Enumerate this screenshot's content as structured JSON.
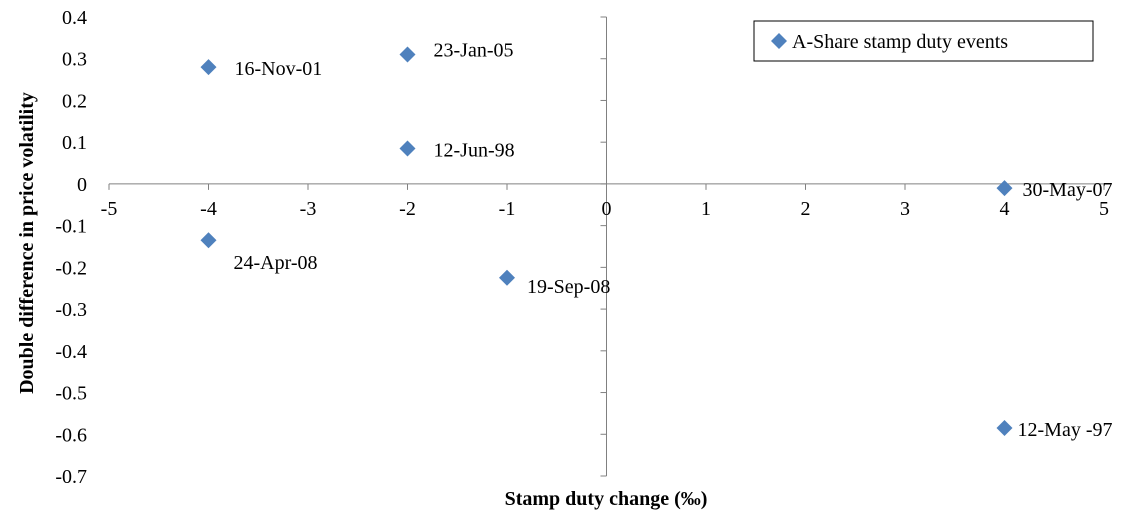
{
  "chart_data": {
    "type": "scatter",
    "xlabel": "Stamp duty change (‰)",
    "ylabel": "Double difference in price volatility",
    "xlim": [
      -5,
      5
    ],
    "ylim": [
      -0.7,
      0.4
    ],
    "x_ticks": [
      "-5",
      "-4",
      "-3",
      "-2",
      "-1",
      "0",
      "1",
      "2",
      "3",
      "4",
      "5"
    ],
    "y_ticks": [
      "0.4",
      "0.3",
      "0.2",
      "0.1",
      "0",
      "-0.1",
      "-0.2",
      "-0.3",
      "-0.4",
      "-0.5",
      "-0.6",
      "-0.7"
    ],
    "grid": false,
    "legend_position": "top-right",
    "marker_color": "#4F81BD",
    "series": [
      {
        "name": "A-Share stamp duty events",
        "points": [
          {
            "x": -4,
            "y": 0.28,
            "label": "16-Nov-01"
          },
          {
            "x": -2,
            "y": 0.31,
            "label": "23-Jan-05"
          },
          {
            "x": -2,
            "y": 0.085,
            "label": "12-Jun-98"
          },
          {
            "x": 4,
            "y": -0.01,
            "label": "30-May-07"
          },
          {
            "x": -4,
            "y": -0.135,
            "label": "24-Apr-08"
          },
          {
            "x": -1,
            "y": -0.225,
            "label": "19-Sep-08"
          },
          {
            "x": 4,
            "y": -0.585,
            "label": "12-May -97"
          }
        ]
      }
    ]
  }
}
